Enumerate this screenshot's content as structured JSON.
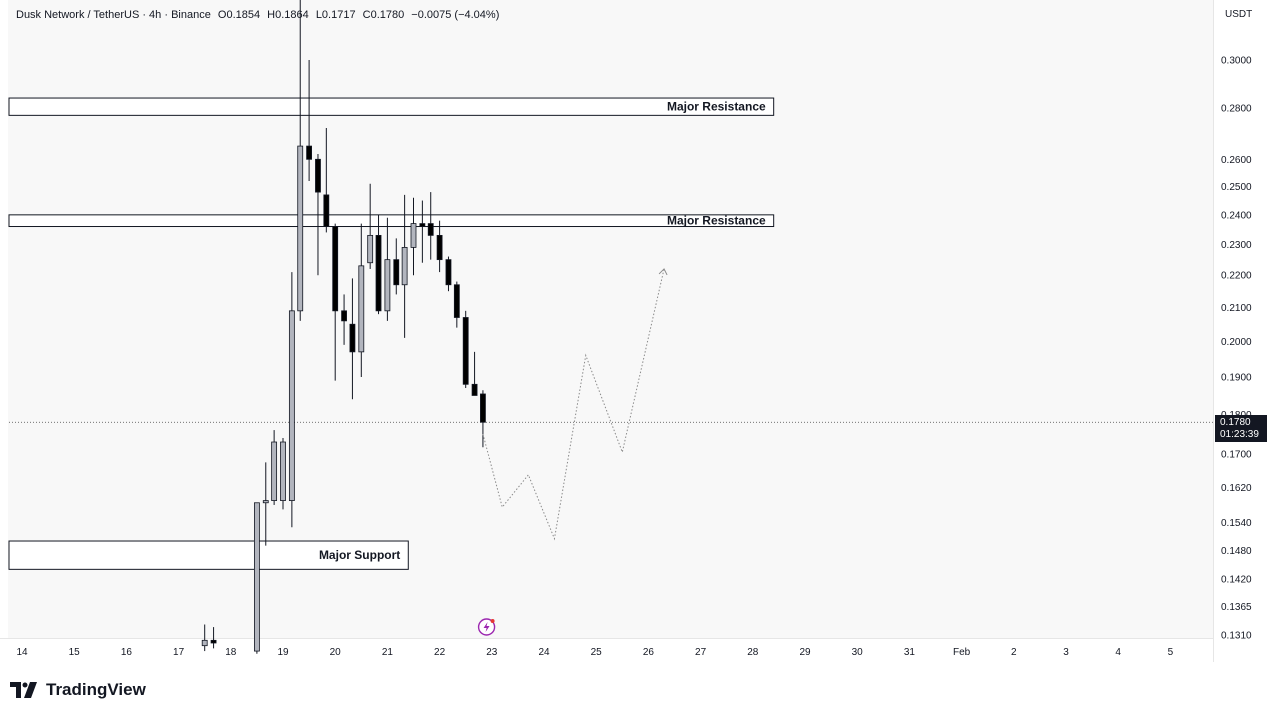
{
  "header": {
    "symbol": "Dusk Network / TetherUS · 4h · Binance",
    "open": "O0.1854",
    "high": "H0.1864",
    "low": "L0.1717",
    "close": "C0.1780",
    "change": "−0.0075 (−4.04%)"
  },
  "currency": "USDT",
  "brand": "TradingView",
  "price_tag": {
    "price": "0.1780",
    "countdown": "01:23:39"
  },
  "colors": {
    "bull_body": "#b2b5be",
    "bear_body": "#000000",
    "wick": "#131722",
    "zone_border": "#131722",
    "projection": "#8a8a8a"
  },
  "chart_data": {
    "type": "candlestick",
    "y_scale": "log",
    "ylim": [
      0.13,
      0.33
    ],
    "price_ticks": [
      "0.3000",
      "0.2800",
      "0.2600",
      "0.2500",
      "0.2400",
      "0.2300",
      "0.2200",
      "0.2100",
      "0.2000",
      "0.1900",
      "0.1800",
      "0.1700",
      "0.1620",
      "0.1540",
      "0.1480",
      "0.1420",
      "0.1365",
      "0.1310"
    ],
    "date_labels": [
      {
        "label": "14",
        "day": 14
      },
      {
        "label": "15",
        "day": 15
      },
      {
        "label": "16",
        "day": 16
      },
      {
        "label": "17",
        "day": 17
      },
      {
        "label": "18",
        "day": 18
      },
      {
        "label": "19",
        "day": 19
      },
      {
        "label": "20",
        "day": 20
      },
      {
        "label": "21",
        "day": 21
      },
      {
        "label": "22",
        "day": 22
      },
      {
        "label": "23",
        "day": 23
      },
      {
        "label": "24",
        "day": 24
      },
      {
        "label": "25",
        "day": 25
      },
      {
        "label": "26",
        "day": 26
      },
      {
        "label": "27",
        "day": 27
      },
      {
        "label": "28",
        "day": 28
      },
      {
        "label": "29",
        "day": 29
      },
      {
        "label": "30",
        "day": 30
      },
      {
        "label": "31",
        "day": 31
      },
      {
        "label": "Feb",
        "day": 32
      },
      {
        "label": "2",
        "day": 33
      },
      {
        "label": "3",
        "day": 34
      },
      {
        "label": "4",
        "day": 35
      },
      {
        "label": "5",
        "day": 36
      }
    ],
    "candles": [
      {
        "t": 17.5,
        "o": 0.129,
        "h": 0.133,
        "l": 0.128,
        "c": 0.13
      },
      {
        "t": 17.67,
        "o": 0.13,
        "h": 0.1325,
        "l": 0.1285,
        "c": 0.1295
      },
      {
        "t": 18.5,
        "o": 0.128,
        "h": 0.1585,
        "l": 0.1275,
        "c": 0.1585
      },
      {
        "t": 18.67,
        "o": 0.1585,
        "h": 0.168,
        "l": 0.149,
        "c": 0.159
      },
      {
        "t": 18.83,
        "o": 0.159,
        "h": 0.176,
        "l": 0.158,
        "c": 0.173
      },
      {
        "t": 19.0,
        "o": 0.159,
        "h": 0.174,
        "l": 0.157,
        "c": 0.173
      },
      {
        "t": 19.17,
        "o": 0.159,
        "h": 0.221,
        "l": 0.153,
        "c": 0.209
      },
      {
        "t": 19.33,
        "o": 0.209,
        "h": 0.335,
        "l": 0.206,
        "c": 0.265
      },
      {
        "t": 19.5,
        "o": 0.265,
        "h": 0.3,
        "l": 0.252,
        "c": 0.26
      },
      {
        "t": 19.67,
        "o": 0.26,
        "h": 0.262,
        "l": 0.22,
        "c": 0.248
      },
      {
        "t": 19.83,
        "o": 0.247,
        "h": 0.272,
        "l": 0.234,
        "c": 0.236
      },
      {
        "t": 20.0,
        "o": 0.236,
        "h": 0.237,
        "l": 0.189,
        "c": 0.209
      },
      {
        "t": 20.17,
        "o": 0.209,
        "h": 0.214,
        "l": 0.199,
        "c": 0.206
      },
      {
        "t": 20.33,
        "o": 0.205,
        "h": 0.219,
        "l": 0.184,
        "c": 0.197
      },
      {
        "t": 20.5,
        "o": 0.197,
        "h": 0.237,
        "l": 0.19,
        "c": 0.223
      },
      {
        "t": 20.67,
        "o": 0.224,
        "h": 0.251,
        "l": 0.222,
        "c": 0.233
      },
      {
        "t": 20.83,
        "o": 0.233,
        "h": 0.24,
        "l": 0.208,
        "c": 0.209
      },
      {
        "t": 21.0,
        "o": 0.209,
        "h": 0.239,
        "l": 0.206,
        "c": 0.225
      },
      {
        "t": 21.17,
        "o": 0.225,
        "h": 0.232,
        "l": 0.214,
        "c": 0.217
      },
      {
        "t": 21.33,
        "o": 0.217,
        "h": 0.247,
        "l": 0.201,
        "c": 0.229
      },
      {
        "t": 21.5,
        "o": 0.229,
        "h": 0.246,
        "l": 0.22,
        "c": 0.237
      },
      {
        "t": 21.67,
        "o": 0.237,
        "h": 0.245,
        "l": 0.224,
        "c": 0.236
      },
      {
        "t": 21.83,
        "o": 0.237,
        "h": 0.248,
        "l": 0.225,
        "c": 0.233
      },
      {
        "t": 22.0,
        "o": 0.233,
        "h": 0.238,
        "l": 0.221,
        "c": 0.225
      },
      {
        "t": 22.17,
        "o": 0.225,
        "h": 0.226,
        "l": 0.215,
        "c": 0.217
      },
      {
        "t": 22.33,
        "o": 0.217,
        "h": 0.218,
        "l": 0.204,
        "c": 0.207
      },
      {
        "t": 22.5,
        "o": 0.207,
        "h": 0.209,
        "l": 0.187,
        "c": 0.188
      },
      {
        "t": 22.67,
        "o": 0.188,
        "h": 0.197,
        "l": 0.185,
        "c": 0.185
      },
      {
        "t": 22.83,
        "o": 0.1854,
        "h": 0.1864,
        "l": 0.1717,
        "c": 0.178
      }
    ],
    "zones": [
      {
        "label": "Major Resistance",
        "top": 0.284,
        "bottom": 0.277,
        "t_start": 14.0,
        "t_end": 28.4
      },
      {
        "label": "Major Resistance",
        "top": 0.24,
        "bottom": 0.236,
        "t_start": 14.0,
        "t_end": 28.4
      },
      {
        "label": "Major Support",
        "top": 0.15,
        "bottom": 0.144,
        "t_start": 14.0,
        "t_end": 21.4
      }
    ],
    "projection": [
      {
        "t": 22.83,
        "p": 0.175
      },
      {
        "t": 23.2,
        "p": 0.1575
      },
      {
        "t": 23.7,
        "p": 0.165
      },
      {
        "t": 24.2,
        "p": 0.1505
      },
      {
        "t": 24.8,
        "p": 0.196
      },
      {
        "t": 25.5,
        "p": 0.1705
      },
      {
        "t": 26.3,
        "p": 0.222
      }
    ],
    "current_price": 0.178
  }
}
